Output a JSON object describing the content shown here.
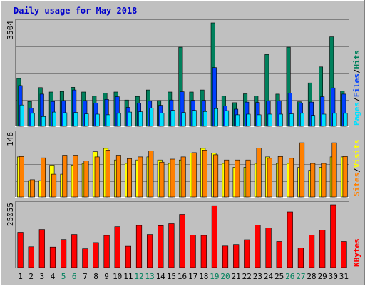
{
  "title": "Daily usage for May 2018",
  "colors": {
    "frame_bg": "#c0c0c0",
    "border_light": "#ffffff",
    "border_dark": "#808080",
    "title": "#0000cc",
    "gridline": "#808080",
    "hits": "#00805c",
    "files": "#0040ff",
    "pages": "#00e0ff",
    "visits": "#ffff00",
    "sites": "#ff8000",
    "kbytes": "#ff0000",
    "weekday_label": "#000000",
    "weekend_label": "#00805c"
  },
  "chart_data": [
    {
      "type": "bar",
      "panel": "hits-files-pages",
      "ylabel_max": "3504",
      "ylim": [
        0,
        3504
      ],
      "grid": true,
      "right_labels": [
        "Hits",
        "Files",
        "Pages"
      ],
      "categories": [
        "1",
        "2",
        "3",
        "4",
        "5",
        "6",
        "7",
        "8",
        "9",
        "10",
        "11",
        "12",
        "13",
        "14",
        "15",
        "16",
        "17",
        "18",
        "19",
        "20",
        "21",
        "22",
        "23",
        "24",
        "25",
        "26",
        "27",
        "28",
        "29",
        "30",
        "31"
      ],
      "series": [
        {
          "name": "Hits",
          "values": [
            1620,
            840,
            1310,
            1160,
            1180,
            1320,
            1160,
            1020,
            1120,
            1160,
            890,
            1010,
            1230,
            870,
            1160,
            2680,
            1160,
            1230,
            3504,
            1020,
            800,
            1100,
            1030,
            2430,
            1090,
            2680,
            830,
            1470,
            2010,
            3030,
            1190
          ]
        },
        {
          "name": "Files",
          "values": [
            1380,
            620,
            1090,
            840,
            870,
            1230,
            870,
            780,
            910,
            1000,
            640,
            780,
            850,
            710,
            890,
            1170,
            880,
            880,
            1990,
            690,
            580,
            820,
            810,
            860,
            860,
            1120,
            790,
            820,
            1000,
            1300,
            1090
          ]
        },
        {
          "name": "Pages",
          "values": [
            720,
            440,
            330,
            480,
            460,
            470,
            420,
            410,
            390,
            440,
            480,
            490,
            620,
            450,
            540,
            470,
            540,
            500,
            600,
            530,
            390,
            410,
            390,
            410,
            410,
            420,
            440,
            370,
            410,
            440,
            440
          ]
        }
      ]
    },
    {
      "type": "bar",
      "panel": "visits-sites",
      "ylabel_max": "146",
      "ylim": [
        0,
        146
      ],
      "grid": true,
      "right_labels": [
        "Visits",
        "Sites"
      ],
      "categories": [
        "1",
        "2",
        "3",
        "4",
        "5",
        "6",
        "7",
        "8",
        "9",
        "10",
        "11",
        "12",
        "13",
        "14",
        "15",
        "16",
        "17",
        "18",
        "19",
        "20",
        "21",
        "22",
        "23",
        "24",
        "25",
        "26",
        "27",
        "28",
        "29",
        "30",
        "31"
      ],
      "series": [
        {
          "name": "Visits",
          "values": [
            93,
            38,
            38,
            74,
            53,
            74,
            78,
            105,
            113,
            86,
            78,
            86,
            93,
            86,
            78,
            86,
            102,
            113,
            102,
            78,
            69,
            69,
            78,
            93,
            78,
            78,
            69,
            62,
            69,
            93,
            93
          ]
        },
        {
          "name": "Sites",
          "values": [
            94,
            40,
            91,
            53,
            97,
            97,
            84,
            93,
            109,
            97,
            89,
            93,
            107,
            81,
            88,
            93,
            103,
            109,
            98,
            86,
            86,
            86,
            114,
            90,
            94,
            90,
            126,
            78,
            78,
            126,
            94
          ]
        }
      ]
    },
    {
      "type": "bar",
      "panel": "kbytes",
      "ylabel_max": "25055",
      "ylim": [
        0,
        25055
      ],
      "grid": false,
      "right_labels": [
        "KBytes"
      ],
      "categories": [
        "1",
        "2",
        "3",
        "4",
        "5",
        "6",
        "7",
        "8",
        "9",
        "10",
        "11",
        "12",
        "13",
        "14",
        "15",
        "16",
        "17",
        "18",
        "19",
        "20",
        "21",
        "22",
        "23",
        "24",
        "25",
        "26",
        "27",
        "28",
        "29",
        "30",
        "31"
      ],
      "series": [
        {
          "name": "KBytes",
          "values": [
            14100,
            8300,
            15200,
            8200,
            11200,
            13200,
            7500,
            10000,
            12800,
            16300,
            8500,
            16800,
            13200,
            16700,
            17500,
            21200,
            12900,
            12800,
            24700,
            8600,
            9200,
            11100,
            17000,
            15800,
            10400,
            22200,
            7800,
            13000,
            14900,
            25055,
            10400
          ]
        }
      ]
    }
  ]
}
